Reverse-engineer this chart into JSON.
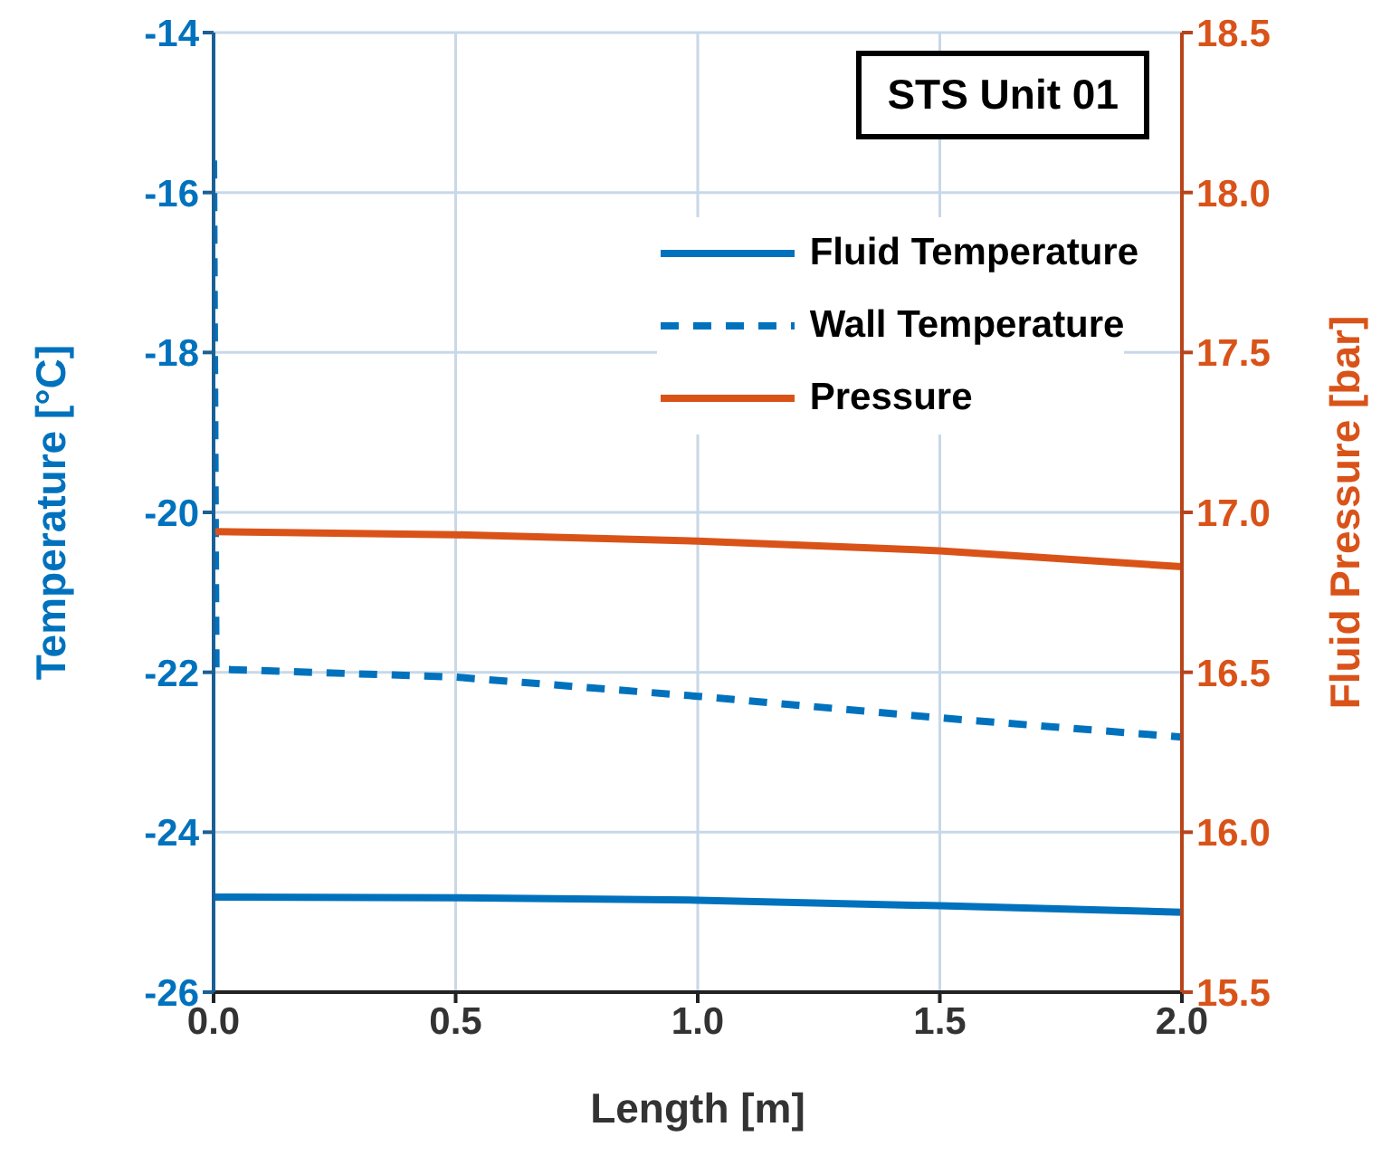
{
  "chart_data": {
    "type": "line",
    "xlabel": "Length [m]",
    "ylabel": "Temperature [°C]",
    "y2label": "Fluid Pressure [bar]",
    "annotations": [
      "STS Unit 01"
    ],
    "xlim": [
      0,
      2
    ],
    "xticks": [
      {
        "value": 0,
        "label": "0.0"
      },
      {
        "value": 0.5,
        "label": "0.5"
      },
      {
        "value": 1,
        "label": "1.0"
      },
      {
        "value": 1.5,
        "label": "1.5"
      },
      {
        "value": 2,
        "label": "2.0"
      }
    ],
    "ylim": [
      -26,
      -14
    ],
    "yticks": [
      -26,
      -24,
      -22,
      -20,
      -18,
      -16,
      -14
    ],
    "y2lim": [
      15.5,
      18.5
    ],
    "y2ticks": [
      15.5,
      {
        "value": 16,
        "label": "16.0"
      },
      16.5,
      {
        "value": 17,
        "label": "17.0"
      },
      17.5,
      {
        "value": 18,
        "label": "18.0"
      },
      18.5
    ],
    "grid": true,
    "legend": "top right",
    "marker": "none",
    "series": [
      {
        "name": "Fluid Temperature",
        "color": "#0072bd",
        "line_style": "solid",
        "x": [
          0,
          0.5,
          1,
          1.5,
          2
        ],
        "values": [
          -24.81,
          -24.82,
          -24.85,
          -24.92,
          -25.0
        ]
      },
      {
        "name": "Wall Temperature",
        "color": "#0072bd",
        "line_style": "dashed",
        "x": [
          0,
          0.005,
          0.5,
          1,
          1.5,
          2
        ],
        "values": [
          -15.6,
          -21.96,
          -22.06,
          -22.3,
          -22.57,
          -22.81
        ]
      },
      {
        "name": "Pressure",
        "color": "#d95319",
        "line_style": "solid",
        "axis": "y2",
        "x": [
          0,
          0.5,
          1,
          1.5,
          2
        ],
        "values": [
          16.94,
          16.93,
          16.91,
          16.88,
          16.83
        ]
      }
    ]
  }
}
